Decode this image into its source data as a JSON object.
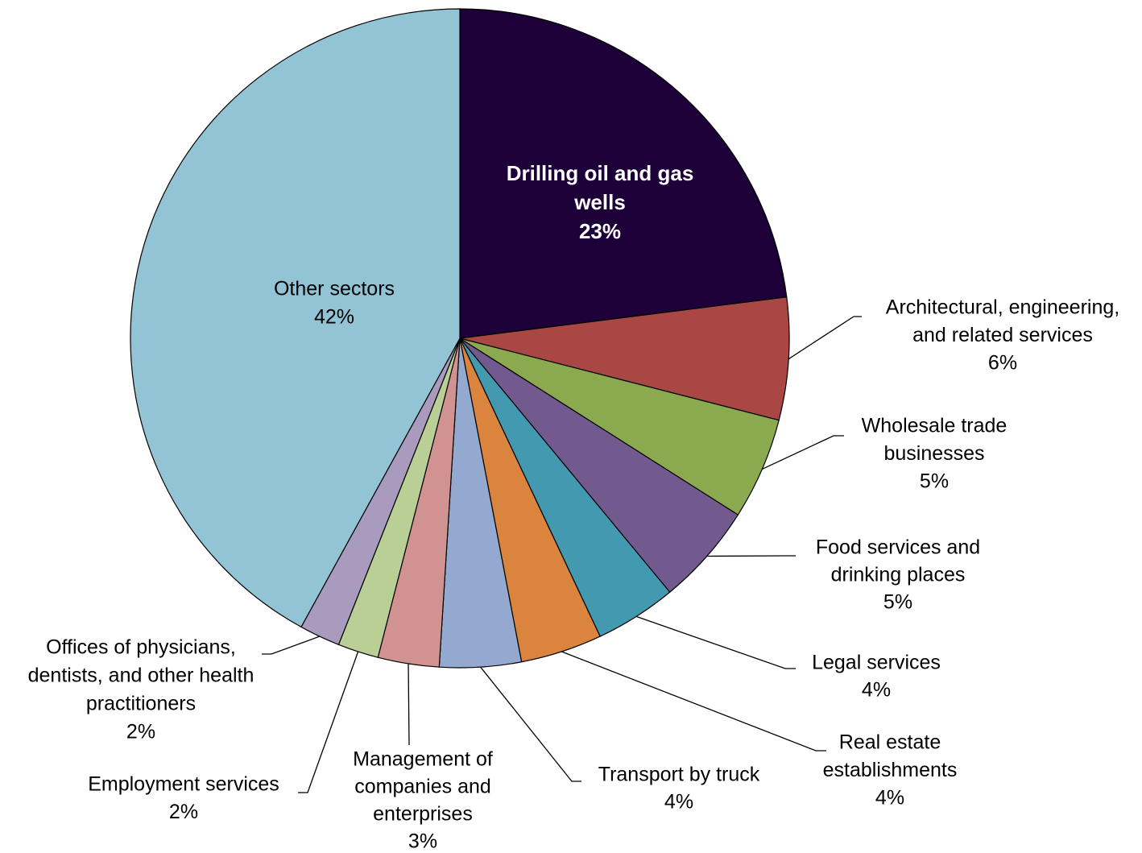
{
  "chart_data": {
    "type": "pie",
    "categories": [
      [
        "Drilling oil and gas",
        "wells"
      ],
      [
        "Architectural, engineering,",
        "and related services"
      ],
      [
        "Wholesale trade",
        "businesses"
      ],
      [
        "Food services and",
        "drinking places"
      ],
      [
        "Legal services"
      ],
      [
        "Real estate",
        "establishments"
      ],
      [
        "Transport by truck"
      ],
      [
        "Management of",
        "companies and",
        "enterprises"
      ],
      [
        "Employment services"
      ],
      [
        "Offices of physicians,",
        "dentists, and other health",
        "practitioners"
      ],
      [
        "Other sectors"
      ]
    ],
    "values": [
      23,
      6,
      5,
      5,
      4,
      4,
      4,
      3,
      2,
      2,
      42
    ],
    "value_labels": [
      "23%",
      "6%",
      "5%",
      "5%",
      "4%",
      "4%",
      "4%",
      "3%",
      "2%",
      "2%",
      "42%"
    ],
    "colors": [
      "#1c0037",
      "#a84743",
      "#8ba94e",
      "#725a8e",
      "#4299b0",
      "#db843d",
      "#93a9cf",
      "#d19392",
      "#b9cf96",
      "#a99bbd",
      "#93c4d5"
    ]
  }
}
